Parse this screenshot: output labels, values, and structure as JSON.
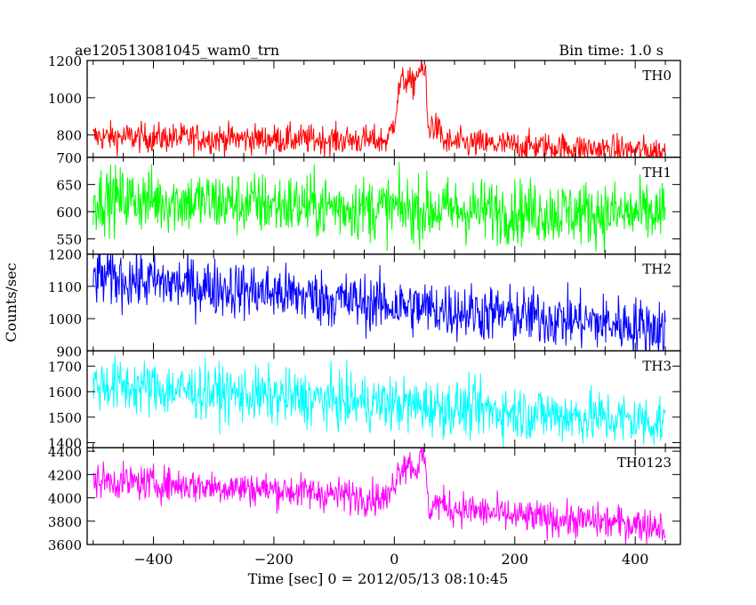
{
  "header": {
    "title": "ae120513081045_wam0_trn",
    "bin_time": "Bin time: 1.0 s"
  },
  "chart_data": {
    "type": "line",
    "xlabel": "Time [sec] 0 = 2012/05/13 08:10:45",
    "ylabel": "Counts/sec",
    "xlim": [
      -510,
      475
    ],
    "x_ticks": [
      -400,
      -200,
      0,
      200,
      400
    ],
    "x_range_data": [
      -500,
      450
    ],
    "bin_time_s": 1.0,
    "grid": false,
    "panels": [
      {
        "name": "TH0",
        "color": "#ff0000",
        "ylim": [
          680,
          1200
        ],
        "yticks": [
          800,
          1000,
          1200
        ],
        "trend": [
          [
            -500,
            790
          ],
          [
            0,
            770
          ],
          [
            450,
            710
          ]
        ],
        "noise": 40,
        "burst": [
          [
            -10,
            780
          ],
          [
            0,
            880
          ],
          [
            10,
            1080
          ],
          [
            22,
            1100
          ],
          [
            30,
            1060
          ],
          [
            40,
            1150
          ],
          [
            52,
            1130
          ],
          [
            56,
            820
          ],
          [
            62,
            860
          ],
          [
            80,
            800
          ]
        ]
      },
      {
        "name": "TH1",
        "color": "#00ff00",
        "ylim": [
          522,
          700
        ],
        "yticks": [
          550,
          600,
          650,
          700
        ],
        "trend": [
          [
            -500,
            625
          ],
          [
            0,
            605
          ],
          [
            450,
            595
          ]
        ],
        "noise": 30,
        "burst": []
      },
      {
        "name": "TH2",
        "color": "#0000ff",
        "ylim": [
          900,
          1200
        ],
        "yticks": [
          900,
          1000,
          1100,
          1200
        ],
        "trend": [
          [
            -500,
            1130
          ],
          [
            -200,
            1080
          ],
          [
            0,
            1040
          ],
          [
            200,
            1010
          ],
          [
            450,
            970
          ]
        ],
        "noise": 45,
        "burst": []
      },
      {
        "name": "TH3",
        "color": "#00ffff",
        "ylim": [
          1380,
          1760
        ],
        "yticks": [
          1400,
          1500,
          1600,
          1700
        ],
        "trend": [
          [
            -500,
            1630
          ],
          [
            -200,
            1580
          ],
          [
            0,
            1550
          ],
          [
            200,
            1520
          ],
          [
            450,
            1480
          ]
        ],
        "noise": 55,
        "burst": []
      },
      {
        "name": "TH0123",
        "color": "#ff00ff",
        "ylim": [
          3600,
          4430
        ],
        "yticks": [
          3600,
          3800,
          4000,
          4200,
          4400
        ],
        "trend": [
          [
            -500,
            4150
          ],
          [
            -200,
            4070
          ],
          [
            0,
            3990
          ],
          [
            200,
            3840
          ],
          [
            450,
            3760
          ]
        ],
        "noise": 75,
        "burst": [
          [
            -10,
            3990
          ],
          [
            0,
            4150
          ],
          [
            12,
            4280
          ],
          [
            25,
            4300
          ],
          [
            35,
            4240
          ],
          [
            45,
            4350
          ],
          [
            52,
            4300
          ],
          [
            56,
            3900
          ],
          [
            70,
            3960
          ],
          [
            100,
            3900
          ]
        ]
      }
    ]
  }
}
